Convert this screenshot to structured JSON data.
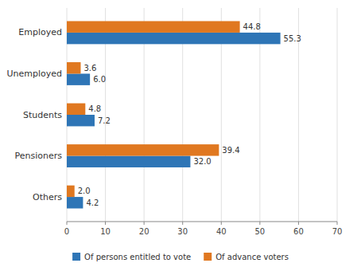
{
  "chart_data": {
    "type": "bar",
    "orientation": "horizontal",
    "categories": [
      "Others",
      "Pensioners",
      "Students",
      "Unemployed",
      "Employed"
    ],
    "series": [
      {
        "name": "Of persons entitled to vote",
        "color": "#2E75B6",
        "values": [
          4.2,
          32.0,
          7.2,
          6.0,
          55.3
        ],
        "value_labels": [
          "4.2",
          "32.0",
          "7.2",
          "6.0",
          "55.3"
        ]
      },
      {
        "name": "Of advance voters",
        "color": "#E07820",
        "values": [
          2.0,
          39.4,
          4.8,
          3.6,
          44.8
        ],
        "value_labels": [
          "2.0",
          "39.4",
          "4.8",
          "3.6",
          "44.8"
        ]
      }
    ],
    "xlim": [
      0,
      70
    ],
    "xticks": [
      0,
      10,
      20,
      30,
      40,
      50,
      60,
      70
    ],
    "grid": true,
    "data_labels": true,
    "legend": "bottom"
  }
}
